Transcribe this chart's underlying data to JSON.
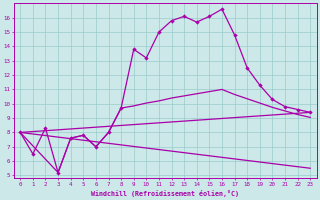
{
  "xlabel": "Windchill (Refroidissement éolien,°C)",
  "xlim": [
    -0.5,
    23.5
  ],
  "ylim": [
    4.8,
    17.0
  ],
  "yticks": [
    5,
    6,
    7,
    8,
    9,
    10,
    11,
    12,
    13,
    14,
    15,
    16
  ],
  "xticks": [
    0,
    1,
    2,
    3,
    4,
    5,
    6,
    7,
    8,
    9,
    10,
    11,
    12,
    13,
    14,
    15,
    16,
    17,
    18,
    19,
    20,
    21,
    22,
    23
  ],
  "bg_color": "#cce8e8",
  "line_color": "#aa00aa",
  "grid_color": "#99cccc",
  "main_x": [
    0,
    1,
    2,
    3,
    4,
    5,
    6,
    7,
    8,
    9,
    10,
    11,
    12,
    13,
    14,
    15,
    16,
    17,
    18,
    19,
    20,
    21,
    22,
    23
  ],
  "main_y": [
    8.0,
    6.5,
    8.3,
    5.2,
    7.6,
    7.8,
    7.0,
    8.0,
    9.7,
    13.8,
    13.2,
    15.0,
    15.8,
    16.1,
    15.7,
    16.1,
    16.6,
    14.8,
    12.5,
    11.3,
    10.3,
    9.8,
    9.6,
    9.4
  ],
  "upper_line_x": [
    0,
    23
  ],
  "upper_line_y": [
    8.0,
    9.4
  ],
  "lower_line_x": [
    0,
    23
  ],
  "lower_line_y": [
    8.0,
    5.5
  ],
  "mid_upper_x": [
    0,
    3,
    4,
    5,
    6,
    7,
    8,
    9,
    10,
    11,
    12,
    13,
    14,
    15,
    16,
    17,
    18,
    19,
    20,
    21,
    22,
    23
  ],
  "mid_upper_y": [
    8.0,
    5.2,
    7.6,
    7.8,
    7.0,
    8.0,
    9.7,
    9.85,
    10.05,
    10.2,
    10.4,
    10.55,
    10.7,
    10.85,
    11.0,
    10.65,
    10.35,
    10.05,
    9.75,
    9.5,
    9.25,
    9.05
  ]
}
